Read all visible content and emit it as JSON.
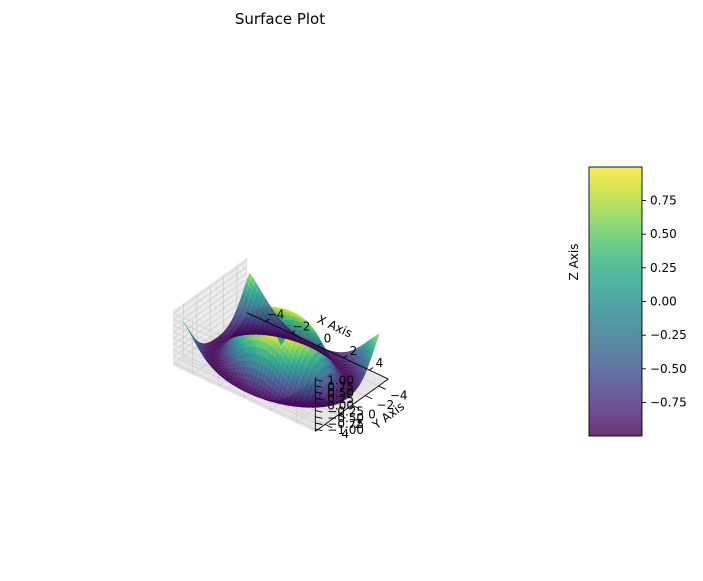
{
  "chart_data": {
    "type": "surface",
    "title": "Surface Plot",
    "xlabel": "X Axis",
    "ylabel": "Y Axis",
    "zlabel": "Z Axis",
    "function": "sin(sqrt(x^2 + y^2))",
    "x_range": [
      -5,
      5
    ],
    "y_range": [
      -5,
      5
    ],
    "zlim": [
      -1,
      1
    ],
    "x_ticks": [
      -4,
      -2,
      0,
      2,
      4
    ],
    "y_ticks": [
      -4,
      -2,
      0,
      2,
      4
    ],
    "z_ticks": [
      -1.0,
      -0.75,
      -0.5,
      -0.25,
      0.0,
      0.25,
      0.5,
      0.75,
      1.0
    ],
    "z_tick_labels": [
      "−1.00",
      "−0.75",
      "−0.50",
      "−0.25",
      "0.00",
      "0.25",
      "0.50",
      "0.75",
      "1.00"
    ],
    "x_tick_labels": [
      "−4",
      "−2",
      "0",
      "2",
      "4"
    ],
    "y_tick_labels": [
      "−4",
      "−2",
      "0",
      "2",
      "4"
    ],
    "colorbar": {
      "cmap": "viridis",
      "range": [
        -0.999,
        0.999
      ],
      "ticks": [
        -0.75,
        -0.5,
        -0.25,
        0.0,
        0.25,
        0.5,
        0.75
      ],
      "tick_labels": [
        "−0.75",
        "−0.50",
        "−0.25",
        "0.00",
        "0.25",
        "0.50",
        "0.75"
      ]
    },
    "grid": true,
    "alpha": 0.8
  }
}
